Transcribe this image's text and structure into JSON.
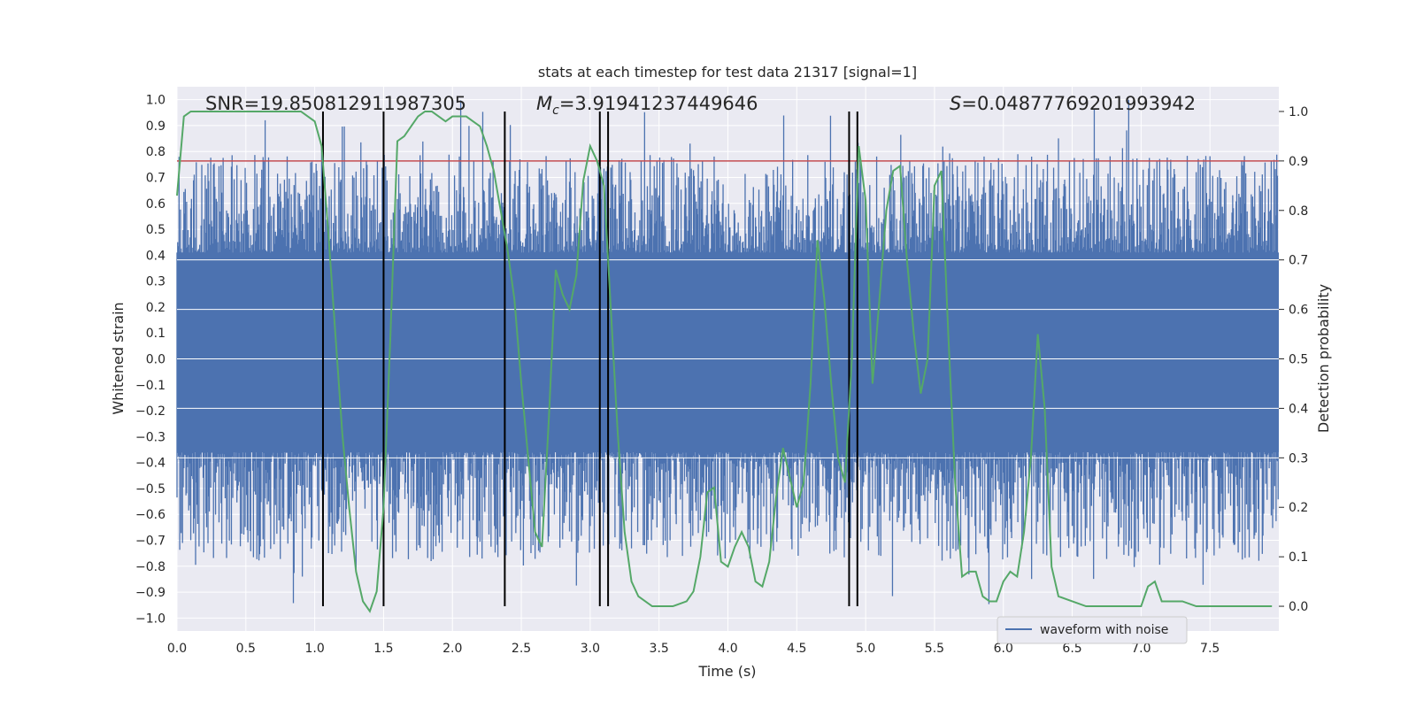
{
  "chart_data": {
    "type": "line",
    "title": "stats at each timestep for test data 21317 [signal=1]",
    "xlabel": "Time (s)",
    "ylabel": "Whitened strain",
    "y2label": "Detection probability",
    "xlim": [
      0.0,
      8.0
    ],
    "ylim": [
      -1.05,
      1.05
    ],
    "y2lim": [
      -0.05,
      1.05
    ],
    "xticks": [
      "0.0",
      "0.5",
      "1.0",
      "1.5",
      "2.0",
      "2.5",
      "3.0",
      "3.5",
      "4.0",
      "4.5",
      "5.0",
      "5.5",
      "6.0",
      "6.5",
      "7.0",
      "7.5"
    ],
    "xtick_values": [
      0,
      0.5,
      1,
      1.5,
      2,
      2.5,
      3,
      3.5,
      4,
      4.5,
      5,
      5.5,
      6,
      6.5,
      7,
      7.5
    ],
    "yticks": [
      "1.0",
      "0.9",
      "0.8",
      "0.7",
      "0.6",
      "0.5",
      "0.4",
      "0.3",
      "0.2",
      "0.1",
      "0.0",
      "−0.1",
      "−0.2",
      "−0.3",
      "−0.4",
      "−0.5",
      "−0.6",
      "−0.7",
      "−0.8",
      "−0.9",
      "−1.0"
    ],
    "ytick_values": [
      1.0,
      0.9,
      0.8,
      0.7,
      0.6,
      0.5,
      0.4,
      0.3,
      0.2,
      0.1,
      0.0,
      -0.1,
      -0.2,
      -0.3,
      -0.4,
      -0.5,
      -0.6,
      -0.7,
      -0.8,
      -0.9,
      -1.0
    ],
    "y2ticks": [
      "1.0",
      "0.9",
      "0.8",
      "0.7",
      "0.6",
      "0.5",
      "0.4",
      "0.3",
      "0.2",
      "0.1",
      "0.0"
    ],
    "y2tick_values": [
      1.0,
      0.9,
      0.8,
      0.7,
      0.6,
      0.5,
      0.4,
      0.3,
      0.2,
      0.1,
      0.0
    ],
    "annotations": {
      "snr": "SNR=19.850812911987305",
      "mc_symbol": "M",
      "mc_sub": "c",
      "mc_value": "=3.91941237449646",
      "s_symbol": "S",
      "s_value": "=0.04877769201993942"
    },
    "threshold_y2": 0.9,
    "vertical_lines_x": [
      1.06,
      1.5,
      2.38,
      3.07,
      3.13,
      4.88,
      4.94
    ],
    "vertical_lines_y2_range": [
      0.0,
      1.0
    ],
    "legend": {
      "label": "waveform with noise",
      "position": "bottom-right"
    },
    "series": [
      {
        "name": "waveform with noise",
        "axis": "left",
        "style": "dense noise band",
        "core_range": [
          -0.36,
          0.41
        ],
        "spike_range": [
          -0.95,
          1.0
        ]
      },
      {
        "name": "detection probability",
        "axis": "right",
        "x": [
          0.0,
          0.05,
          0.1,
          0.2,
          0.3,
          0.4,
          0.5,
          0.6,
          0.7,
          0.8,
          0.9,
          0.95,
          1.0,
          1.05,
          1.1,
          1.15,
          1.2,
          1.25,
          1.3,
          1.35,
          1.4,
          1.45,
          1.5,
          1.55,
          1.6,
          1.65,
          1.7,
          1.75,
          1.8,
          1.85,
          1.9,
          1.95,
          2.0,
          2.05,
          2.1,
          2.15,
          2.2,
          2.25,
          2.3,
          2.35,
          2.4,
          2.45,
          2.5,
          2.55,
          2.6,
          2.65,
          2.7,
          2.75,
          2.8,
          2.85,
          2.9,
          2.95,
          3.0,
          3.05,
          3.1,
          3.15,
          3.2,
          3.25,
          3.3,
          3.35,
          3.4,
          3.45,
          3.5,
          3.6,
          3.7,
          3.75,
          3.8,
          3.85,
          3.9,
          3.95,
          4.0,
          4.05,
          4.1,
          4.15,
          4.2,
          4.25,
          4.3,
          4.35,
          4.4,
          4.45,
          4.5,
          4.55,
          4.6,
          4.65,
          4.7,
          4.75,
          4.8,
          4.85,
          4.9,
          4.95,
          5.0,
          5.05,
          5.1,
          5.15,
          5.2,
          5.25,
          5.3,
          5.35,
          5.4,
          5.45,
          5.5,
          5.55,
          5.6,
          5.65,
          5.7,
          5.75,
          5.8,
          5.85,
          5.9,
          5.95,
          6.0,
          6.05,
          6.1,
          6.15,
          6.2,
          6.25,
          6.3,
          6.35,
          6.4,
          6.5,
          6.6,
          6.8,
          7.0,
          7.05,
          7.1,
          7.15,
          7.2,
          7.3,
          7.4,
          7.5,
          7.6,
          7.7,
          7.8,
          7.9,
          7.95
        ],
        "values": [
          0.83,
          0.99,
          1.0,
          1.0,
          1.0,
          1.0,
          1.0,
          1.0,
          1.0,
          1.0,
          1.0,
          0.99,
          0.98,
          0.93,
          0.75,
          0.55,
          0.35,
          0.2,
          0.07,
          0.01,
          -0.01,
          0.03,
          0.2,
          0.55,
          0.94,
          0.95,
          0.97,
          0.99,
          1.0,
          1.0,
          0.99,
          0.98,
          0.99,
          0.99,
          0.99,
          0.98,
          0.97,
          0.93,
          0.88,
          0.8,
          0.72,
          0.62,
          0.45,
          0.3,
          0.15,
          0.12,
          0.38,
          0.68,
          0.63,
          0.6,
          0.67,
          0.86,
          0.93,
          0.9,
          0.85,
          0.6,
          0.35,
          0.15,
          0.05,
          0.02,
          0.01,
          0.0,
          0.0,
          0.0,
          0.01,
          0.03,
          0.1,
          0.23,
          0.24,
          0.09,
          0.08,
          0.12,
          0.15,
          0.12,
          0.05,
          0.04,
          0.09,
          0.22,
          0.32,
          0.26,
          0.2,
          0.25,
          0.45,
          0.74,
          0.62,
          0.45,
          0.3,
          0.25,
          0.5,
          0.93,
          0.82,
          0.45,
          0.62,
          0.8,
          0.88,
          0.89,
          0.7,
          0.55,
          0.43,
          0.5,
          0.85,
          0.88,
          0.55,
          0.25,
          0.06,
          0.07,
          0.07,
          0.02,
          0.01,
          0.01,
          0.05,
          0.07,
          0.06,
          0.15,
          0.3,
          0.55,
          0.4,
          0.08,
          0.02,
          0.01,
          0.0,
          0.0,
          0.0,
          0.04,
          0.05,
          0.01,
          0.01,
          0.01,
          0.0,
          0.0,
          0.0,
          0.0,
          0.0,
          0.0,
          0.0
        ]
      }
    ],
    "colors": {
      "plot_bg": "#eaeaf2",
      "grid": "#ffffff",
      "waveform": "#4c72b0",
      "probability": "#55a868",
      "threshold": "#c44e52",
      "vlines": "#000000",
      "text": "#262626"
    }
  }
}
